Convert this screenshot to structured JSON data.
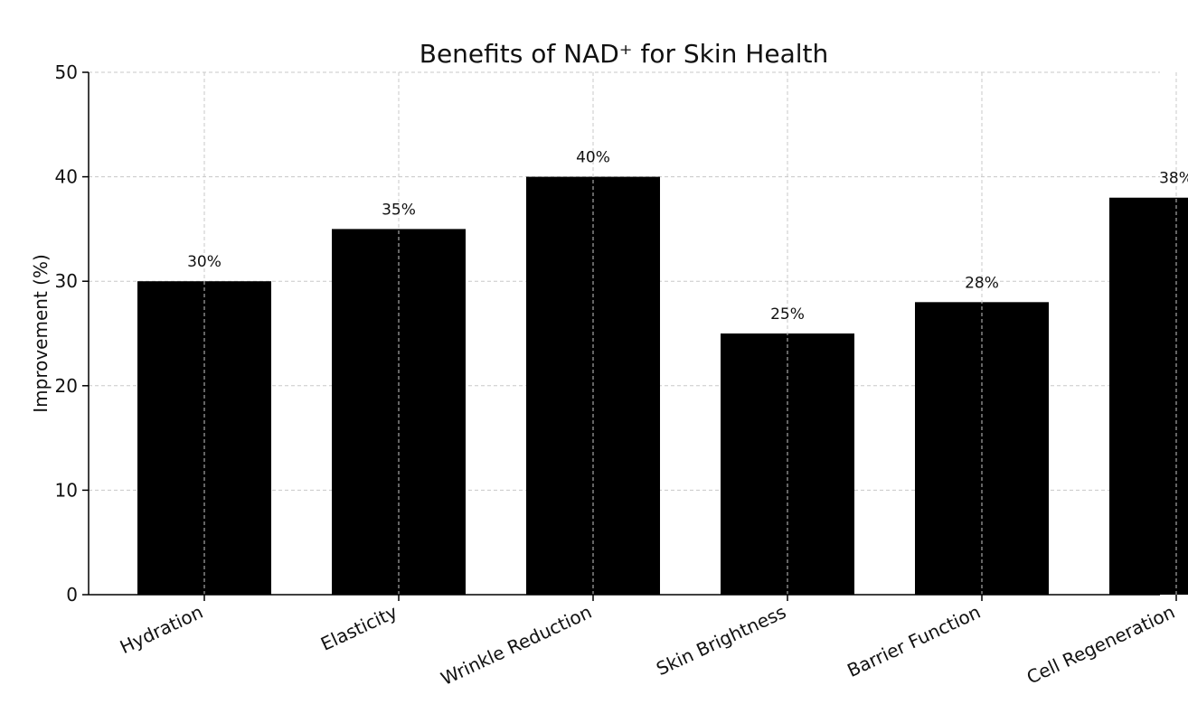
{
  "chart_data": {
    "type": "bar",
    "title": "Benefits of NAD⁺ for Skin Health",
    "xlabel": "",
    "ylabel": "Improvement (%)",
    "categories": [
      "Hydration",
      "Elasticity",
      "Wrinkle Reduction",
      "Skin Brightness",
      "Barrier Function",
      "Cell Regeneration"
    ],
    "values": [
      30,
      35,
      40,
      25,
      28,
      38
    ],
    "data_labels": [
      "30%",
      "35%",
      "40%",
      "25%",
      "28%",
      "38%"
    ],
    "ylim": [
      0,
      50
    ],
    "yticks": [
      0,
      10,
      20,
      30,
      40,
      50
    ],
    "grid": true,
    "colors": {
      "bar": "#000000",
      "grid": "#c8c8c8",
      "axis": "#000000",
      "text": "#111111"
    }
  }
}
